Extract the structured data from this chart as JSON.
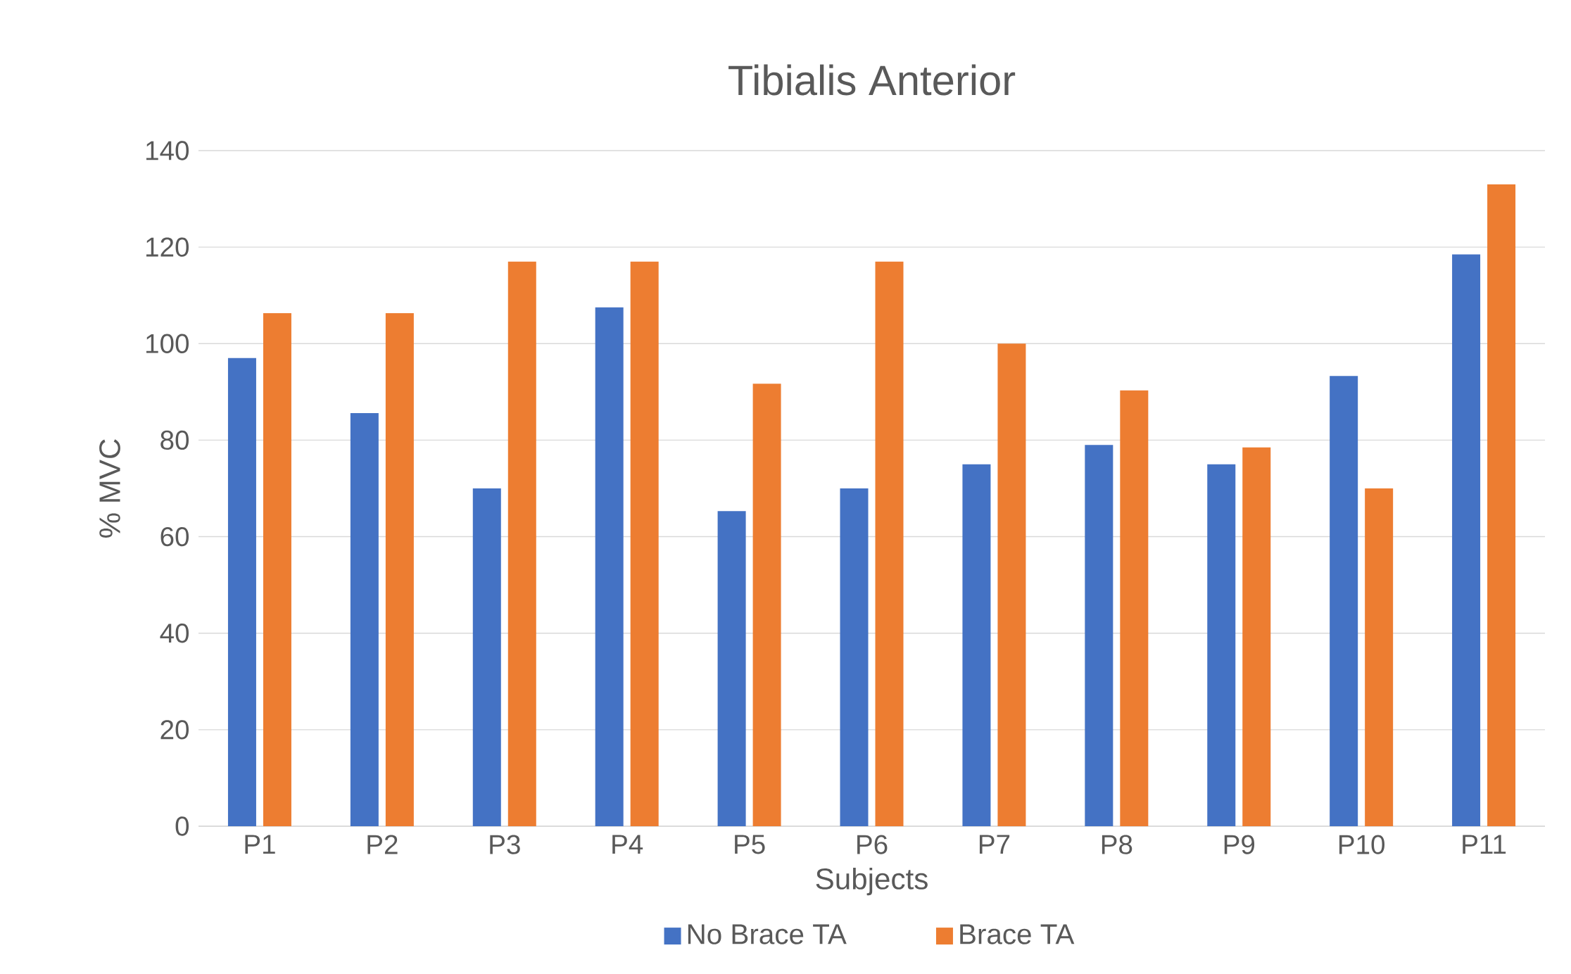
{
  "chart_data": {
    "type": "bar",
    "title": "Tibialis Anterior",
    "xlabel": "Subjects",
    "ylabel": "% MVC",
    "categories": [
      "P1",
      "P2",
      "P3",
      "P4",
      "P5",
      "P6",
      "P7",
      "P8",
      "P9",
      "P10",
      "P11"
    ],
    "series": [
      {
        "name": "No Brace TA",
        "color": "#4472c4",
        "values": [
          97,
          85.6,
          70,
          107.5,
          65.3,
          70,
          75,
          79,
          75,
          93.3,
          118.5
        ]
      },
      {
        "name": "Brace TA",
        "color": "#ed7d31",
        "values": [
          106.3,
          106.3,
          117,
          117,
          91.7,
          117,
          100,
          90.3,
          78.5,
          70,
          133
        ]
      }
    ],
    "ylim": [
      0,
      140
    ],
    "yticks": [
      0,
      20,
      40,
      60,
      80,
      100,
      120,
      140
    ],
    "grid": "y",
    "legend": "bottom"
  }
}
